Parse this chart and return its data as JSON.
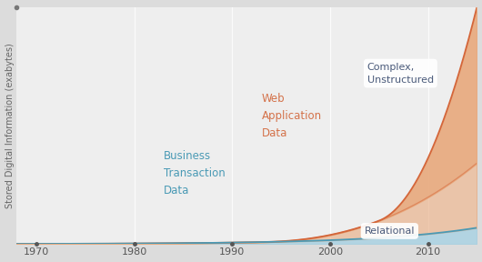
{
  "ylabel": "Stored Digital Information (exabytes)",
  "xmin": 1968,
  "xmax": 2015,
  "ymin": 0,
  "ymax": 1.0,
  "xticks": [
    1970,
    1980,
    1990,
    2000,
    2010
  ],
  "background_color": "#dcdcdc",
  "plot_bg_color": "#eeeeee",
  "relational_fill_color": "#a8d0e0",
  "web_fill_color": "#e8a87c",
  "relational_line_color": "#4a9ab5",
  "web_line_color": "#d4663a",
  "label_relational": "Relational",
  "label_web": "Web\nApplication\nData",
  "label_complex": "Complex,\nUnstructured",
  "label_business": "Business\nTransaction\nData",
  "label_color_blue": "#4a9ab5",
  "label_color_orange": "#d4724a",
  "label_color_dark": "#4a5a7a",
  "ylabel_fontsize": 7,
  "tick_fontsize": 8
}
